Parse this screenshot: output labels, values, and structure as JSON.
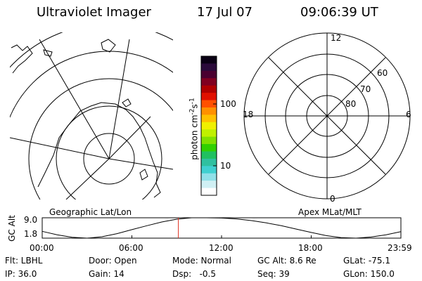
{
  "header": {
    "instrument": "Ultraviolet Imager",
    "date": "17 Jul 07",
    "time": "09:06:39 UT"
  },
  "geo_panel": {
    "label": "Geographic Lat/Lon"
  },
  "apex_panel": {
    "label": "Apex MLat/MLT",
    "mlt_labels": {
      "top": "12",
      "left": "18",
      "right": "6",
      "bottom": "0"
    },
    "lat_labels": [
      "60",
      "70",
      "80"
    ]
  },
  "colorbar": {
    "unit_main": "photon cm",
    "unit_exp1": "-2",
    "unit_s": "s",
    "unit_exp2": "-1",
    "tick_100": "100",
    "tick_10": "10",
    "colors": [
      "#0a0014",
      "#2a0a3a",
      "#4a0030",
      "#800020",
      "#b00000",
      "#e01000",
      "#ff5000",
      "#ff9000",
      "#ffc000",
      "#f0f000",
      "#c0f000",
      "#80e000",
      "#30d000",
      "#20c060",
      "#30c0a0",
      "#40d0d0",
      "#90e0e8",
      "#d0f0f4",
      "#ffffff"
    ]
  },
  "chart_data": {
    "type": "line",
    "title": "",
    "ylabel": "GC Alt",
    "yticks": [
      "1.8",
      "9.0"
    ],
    "ylim": [
      1.8,
      9.0
    ],
    "xticks": [
      "00:00",
      "06:00",
      "12:00",
      "18:00",
      "23:59"
    ],
    "xlim_hours": [
      0,
      24
    ],
    "series": [
      {
        "x": [
          0,
          1,
          2,
          3,
          4,
          5,
          6,
          7,
          8,
          9,
          10,
          11,
          12,
          13,
          14,
          15,
          16,
          17,
          18,
          19,
          20,
          21,
          22,
          23,
          24
        ],
        "y": [
          4.2,
          3.0,
          2.1,
          1.8,
          2.3,
          3.4,
          4.8,
          6.2,
          7.5,
          8.5,
          9.0,
          9.0,
          8.9,
          8.6,
          8.0,
          7.2,
          6.2,
          5.0,
          3.8,
          2.7,
          2.0,
          1.8,
          2.2,
          3.0,
          4.1
        ]
      }
    ],
    "marker_time_hours": 9.11,
    "marker_color": "#e03020"
  },
  "footer": {
    "rows": [
      [
        "Flt: LBHL",
        "Door: Open",
        "Mode: Normal",
        "GC Alt: 8.6 Re",
        "GLat: -75.1"
      ],
      [
        "IP: 36.0",
        "Gain: 14",
        "Dsp:   -0.5",
        "Seq: 39",
        "GLon: 150.0"
      ]
    ]
  }
}
